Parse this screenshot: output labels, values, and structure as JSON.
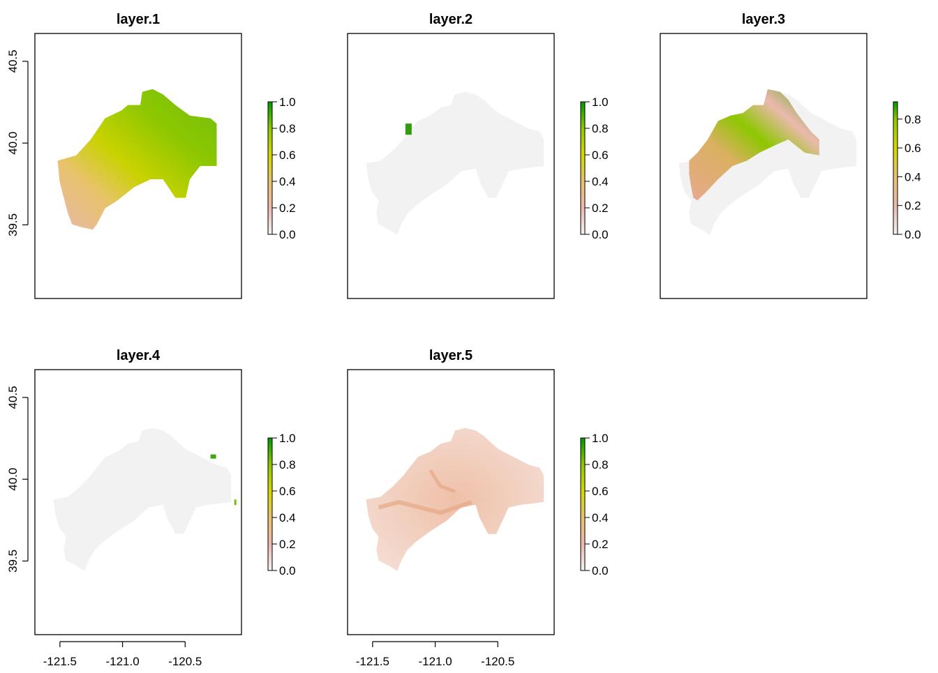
{
  "chart_data": [
    {
      "type": "heatmap",
      "title": "layer.1",
      "xlim": [
        -121.7,
        -120.05
      ],
      "ylim": [
        39.05,
        40.67
      ],
      "x_ticks": [
        -121.5,
        -121.0,
        -120.5
      ],
      "x_tick_labels": [],
      "y_ticks": [
        39.5,
        40.0,
        40.5
      ],
      "y_tick_labels": [
        "39.5",
        "40.0",
        "40.5"
      ],
      "legend": {
        "position": "right",
        "min": 0.0,
        "max": 1.0,
        "ticks": [
          0.0,
          0.2,
          0.4,
          0.6,
          0.8,
          1.0
        ],
        "tick_labels": [
          "0.0",
          "0.2",
          "0.4",
          "0.6",
          "0.8",
          "1.0"
        ]
      },
      "colors": [
        "#F2F2F2",
        "#EBB9AE",
        "#E8C36D",
        "#D4D800",
        "#8EC700",
        "#009900"
      ]
    },
    {
      "type": "heatmap",
      "title": "layer.2",
      "xlim": [
        -121.7,
        -120.05
      ],
      "ylim": [
        39.05,
        40.67
      ],
      "x_ticks": [
        -121.5,
        -121.0,
        -120.5
      ],
      "x_tick_labels": [],
      "y_ticks": [
        39.5,
        40.0,
        40.5
      ],
      "y_tick_labels": [],
      "legend": {
        "position": "right",
        "min": 0.0,
        "max": 1.0,
        "ticks": [
          0.0,
          0.2,
          0.4,
          0.6,
          0.8,
          1.0
        ],
        "tick_labels": [
          "0.0",
          "0.2",
          "0.4",
          "0.6",
          "0.8",
          "1.0"
        ]
      },
      "colors": [
        "#F2F2F2",
        "#EBB9AE",
        "#E8C36D",
        "#D4D800",
        "#8EC700",
        "#009900"
      ]
    },
    {
      "type": "heatmap",
      "title": "layer.3",
      "xlim": [
        -121.7,
        -120.05
      ],
      "ylim": [
        39.05,
        40.67
      ],
      "x_ticks": [
        -121.5,
        -121.0,
        -120.5
      ],
      "x_tick_labels": [],
      "y_ticks": [
        39.5,
        40.0,
        40.5
      ],
      "y_tick_labels": [],
      "legend": {
        "position": "right",
        "min": 0.0,
        "max": 0.92,
        "ticks": [
          0.0,
          0.2,
          0.4,
          0.6,
          0.8
        ],
        "tick_labels": [
          "0.0",
          "0.2",
          "0.4",
          "0.6",
          "0.8"
        ]
      },
      "colors": [
        "#F2F2F2",
        "#EBB9AE",
        "#E8C36D",
        "#D4D800",
        "#8EC700",
        "#009900"
      ]
    },
    {
      "type": "heatmap",
      "title": "layer.4",
      "xlim": [
        -121.7,
        -120.05
      ],
      "ylim": [
        39.05,
        40.67
      ],
      "x_ticks": [
        -121.5,
        -121.0,
        -120.5
      ],
      "x_tick_labels": [
        "-121.5",
        "-121.0",
        "-120.5"
      ],
      "y_ticks": [
        39.5,
        40.0,
        40.5
      ],
      "y_tick_labels": [
        "39.5",
        "40.0",
        "40.5"
      ],
      "legend": {
        "position": "right",
        "min": 0.0,
        "max": 1.0,
        "ticks": [
          0.0,
          0.2,
          0.4,
          0.6,
          0.8,
          1.0
        ],
        "tick_labels": [
          "0.0",
          "0.2",
          "0.4",
          "0.6",
          "0.8",
          "1.0"
        ]
      },
      "colors": [
        "#F2F2F2",
        "#EBB9AE",
        "#E8C36D",
        "#D4D800",
        "#8EC700",
        "#009900"
      ]
    },
    {
      "type": "heatmap",
      "title": "layer.5",
      "xlim": [
        -121.7,
        -120.05
      ],
      "ylim": [
        39.05,
        40.67
      ],
      "x_ticks": [
        -121.5,
        -121.0,
        -120.5
      ],
      "x_tick_labels": [
        "-121.5",
        "-121.0",
        "-120.5"
      ],
      "y_ticks": [
        39.5,
        40.0,
        40.5
      ],
      "y_tick_labels": [],
      "legend": {
        "position": "right",
        "min": 0.0,
        "max": 1.0,
        "ticks": [
          0.0,
          0.2,
          0.4,
          0.6,
          0.8,
          1.0
        ],
        "tick_labels": [
          "0.0",
          "0.2",
          "0.4",
          "0.6",
          "0.8",
          "1.0"
        ]
      },
      "colors": [
        "#F2F2F2",
        "#EBB9AE",
        "#E8C36D",
        "#D4D800",
        "#8EC700",
        "#009900"
      ]
    }
  ]
}
